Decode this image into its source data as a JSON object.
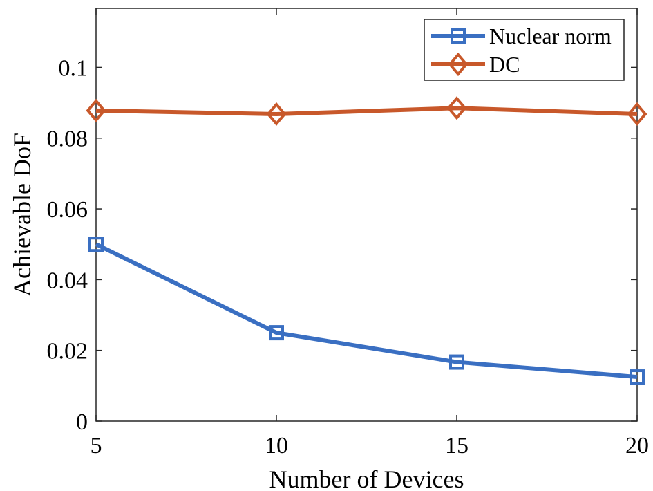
{
  "chart_data": {
    "type": "line",
    "xlabel": "Number of Devices",
    "ylabel": "Achievable DoF",
    "xlim": [
      5,
      20
    ],
    "ylim": [
      0,
      0.1167
    ],
    "x_ticks": [
      5,
      10,
      15,
      20
    ],
    "x_tick_labels": [
      "5",
      "10",
      "15",
      "20"
    ],
    "y_ticks": [
      0,
      0.02,
      0.04,
      0.06,
      0.08,
      0.1
    ],
    "y_tick_labels": [
      "0",
      "0.02",
      "0.04",
      "0.06",
      "0.08",
      "0.1"
    ],
    "x": [
      5,
      10,
      15,
      20
    ],
    "series": [
      {
        "name": "Nuclear norm",
        "values": [
          0.05,
          0.025,
          0.0167,
          0.0125
        ],
        "color": "#3a6fc2",
        "marker": "square"
      },
      {
        "name": "DC",
        "values": [
          0.0878,
          0.0868,
          0.0885,
          0.0868
        ],
        "color": "#c8582a",
        "marker": "diamond"
      }
    ],
    "legend": {
      "position": "top-right"
    },
    "grid": false
  }
}
